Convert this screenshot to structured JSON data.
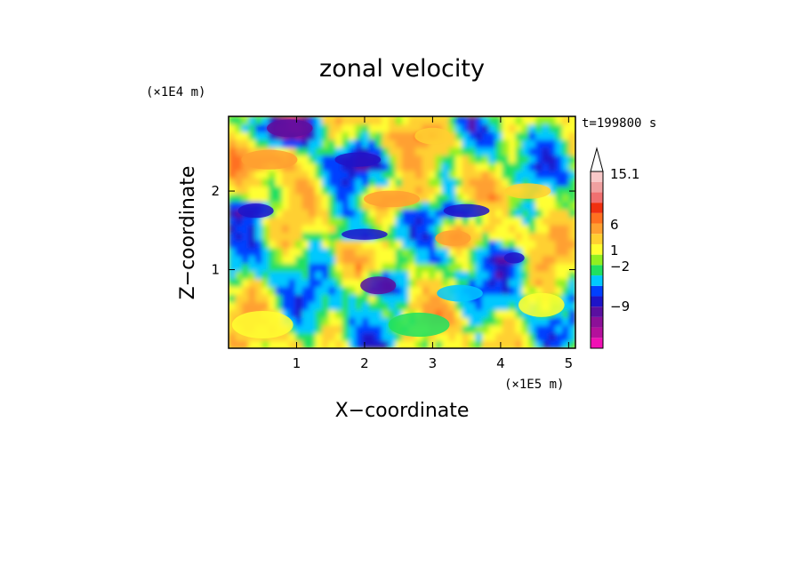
{
  "chart_data": {
    "type": "heatmap",
    "title": "zonal velocity",
    "xlabel": "X−coordinate",
    "ylabel": "Z−coordinate",
    "x_unit": "(×1E5 m)",
    "y_unit": "(×1E4 m)",
    "time_label": "t=199800 s",
    "xlim": [
      0,
      5.1
    ],
    "ylim": [
      0,
      2.95
    ],
    "x_ticks": [
      1,
      2,
      3,
      4,
      5
    ],
    "y_ticks": [
      1,
      2
    ],
    "x_tick_labels": [
      "1",
      "2",
      "3",
      "4",
      "5"
    ],
    "y_tick_labels": [
      "1",
      "2"
    ],
    "colorbar": {
      "labels": [
        {
          "value": 15.1,
          "text": "15.1"
        },
        {
          "value": 6,
          "text": "6"
        },
        {
          "value": 1,
          "text": "1"
        },
        {
          "value": -2,
          "text": "−2"
        },
        {
          "value": -9,
          "text": "−9"
        }
      ],
      "colors_bottom_to_top": [
        "#f010b4",
        "#b4109c",
        "#8c1098",
        "#5a10a0",
        "#1e14c8",
        "#0040ff",
        "#00c8ff",
        "#20e060",
        "#90f020",
        "#ffff30",
        "#ffd030",
        "#ffa030",
        "#ff7020",
        "#f03010",
        "#f07070",
        "#f0a0a0",
        "#f8c8c8"
      ],
      "extend_top": true
    },
    "features": [
      {
        "x": 0.9,
        "z": 2.8,
        "rx": 0.45,
        "rz": 0.16,
        "value": -6
      },
      {
        "x": 0.6,
        "z": 2.4,
        "rx": 0.55,
        "rz": 0.18,
        "value": 5
      },
      {
        "x": 1.9,
        "z": 2.4,
        "rx": 0.45,
        "rz": 0.13,
        "value": -4
      },
      {
        "x": 3.0,
        "z": 2.7,
        "rx": 0.35,
        "rz": 0.15,
        "value": 3
      },
      {
        "x": 2.4,
        "z": 1.9,
        "rx": 0.55,
        "rz": 0.15,
        "value": 5
      },
      {
        "x": 0.4,
        "z": 1.75,
        "rx": 0.35,
        "rz": 0.13,
        "value": -4
      },
      {
        "x": 2.0,
        "z": 1.45,
        "rx": 0.45,
        "rz": 0.1,
        "value": -4
      },
      {
        "x": 3.3,
        "z": 1.4,
        "rx": 0.35,
        "rz": 0.14,
        "value": 5
      },
      {
        "x": 3.5,
        "z": 1.75,
        "rx": 0.45,
        "rz": 0.12,
        "value": -4
      },
      {
        "x": 4.4,
        "z": 2.0,
        "rx": 0.45,
        "rz": 0.14,
        "value": 2
      },
      {
        "x": 4.2,
        "z": 1.15,
        "rx": 0.2,
        "rz": 0.1,
        "value": -5
      },
      {
        "x": 2.2,
        "z": 0.8,
        "rx": 0.35,
        "rz": 0.16,
        "value": -6
      },
      {
        "x": 3.4,
        "z": 0.7,
        "rx": 0.45,
        "rz": 0.15,
        "value": -1
      },
      {
        "x": 4.6,
        "z": 0.55,
        "rx": 0.45,
        "rz": 0.22,
        "value": 1
      },
      {
        "x": 0.5,
        "z": 0.3,
        "rx": 0.6,
        "rz": 0.25,
        "value": 1
      },
      {
        "x": 2.8,
        "z": 0.3,
        "rx": 0.6,
        "rz": 0.22,
        "value": 0
      }
    ]
  }
}
